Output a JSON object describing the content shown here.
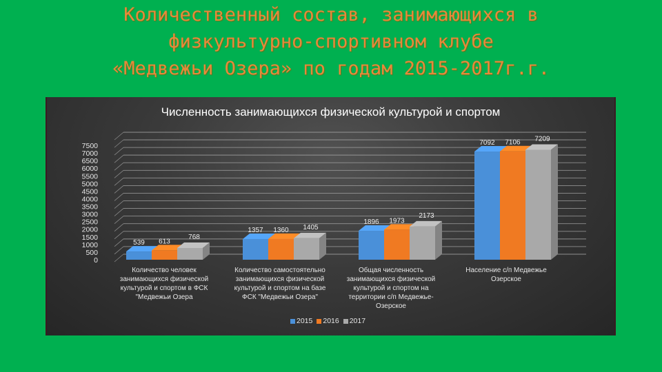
{
  "slide": {
    "title_lines": [
      "Количественный состав, занимающихся в",
      "физкультурно-спортивном клубе",
      "«Медвежьи Озера» по годам 2015-2017г.г."
    ],
    "background_color": "#00b050",
    "title_color": "#e8893a"
  },
  "chart_data": {
    "type": "bar",
    "style": "3d-clustered-column",
    "title": "Численность занимающихся физической культурой и спортом",
    "xlabel": "",
    "ylabel": "",
    "ylim": [
      0,
      7500
    ],
    "y_ticks": [
      "0",
      "500",
      "1000",
      "1500",
      "2000",
      "2500",
      "3000",
      "3500",
      "4000",
      "4500",
      "5000",
      "5500",
      "6000",
      "6500",
      "7000",
      "7500"
    ],
    "grid": true,
    "legend_position": "bottom",
    "categories": [
      "Количество человек занимающихся физической культурой и спортом в ФСК \"Медвежьи Озера",
      "Количество самостоятельно занимающихся физической культурой и спортом на базе ФСК \"Медвежьи Озера\"",
      "Общая численность занимающихся физической культурой и спортом на территории с/п Медвежье-Озерское",
      "Население с/п Медвежье Озерское"
    ],
    "category_lines": [
      [
        "Количество человек",
        "занимающихся физической",
        "культурой и спортом в ФСК",
        "\"Медвежьи Озера"
      ],
      [
        "Количество самостоятельно",
        "занимающихся физической",
        "культурой и спортом на базе",
        "ФСК \"Медвежьи Озера\""
      ],
      [
        "Общая численность",
        "занимающихся физической",
        "культурой и спортом на",
        "территории с/п Медвежье-",
        "Озерское"
      ],
      [
        "Население с/п Медвежье",
        "Озерское"
      ]
    ],
    "series": [
      {
        "name": "2015",
        "color": "#4a90d9",
        "values": [
          539,
          1357,
          1896,
          7092
        ]
      },
      {
        "name": "2016",
        "color": "#f07a22",
        "values": [
          613,
          1360,
          1973,
          7106
        ]
      },
      {
        "name": "2017",
        "color": "#a9a9a9",
        "values": [
          768,
          1405,
          2173,
          7209
        ]
      }
    ],
    "data_labels": [
      [
        "539",
        "613",
        "768"
      ],
      [
        "1357",
        "1360",
        "1405"
      ],
      [
        "1896",
        "1973",
        "2173"
      ],
      [
        "7092",
        "7106",
        "7209"
      ]
    ]
  }
}
